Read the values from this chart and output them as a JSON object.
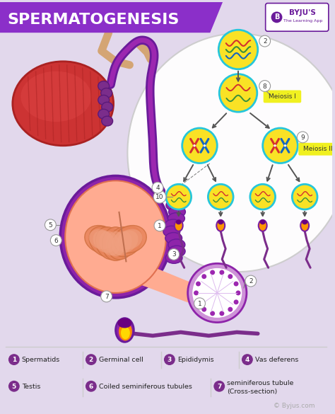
{
  "title": "SPERMATOGENESIS",
  "title_bg_color": "#8B2FC9",
  "title_text_color": "#FFFFFF",
  "bg_color": "#E2D8EC",
  "legend_items": [
    {
      "num": "1",
      "label": "Spermatids"
    },
    {
      "num": "2",
      "label": "Germinal cell"
    },
    {
      "num": "3",
      "label": "Epididymis"
    },
    {
      "num": "4",
      "label": "Vas deferens"
    },
    {
      "num": "5",
      "label": "Testis"
    },
    {
      "num": "6",
      "label": "Coiled seminiferous tubules"
    },
    {
      "num": "7",
      "label": "seminiferous tubule\n(Cross-section)"
    }
  ],
  "legend_num_color": "#7B2D8B",
  "purple_dark": "#6A1B9A",
  "purple_med": "#9C27B0",
  "purple_light": "#CE93D8",
  "peach": "#FFAB91",
  "peach_dark": "#E07050",
  "red_testis": "#C62828",
  "red_testis_light": "#EF5350",
  "orange_tan": "#D4956A",
  "cell_yellow": "#F9E225",
  "cell_border": "#26C6DA",
  "chrom_red": "#D32F2F",
  "chrom_blue": "#1565C0",
  "chrom_green": "#388E3C",
  "meiosis_yellow": "#F0F020",
  "sperm_orange": "#FF8C00",
  "sperm_purple_head": "#7B1FA2",
  "sperm_tail": "#7B2D8B",
  "arrow_col": "#555555",
  "num_circle_bg": "#FFFFFF",
  "num_circle_edge": "#999999",
  "byju_purple": "#6A1B9A"
}
